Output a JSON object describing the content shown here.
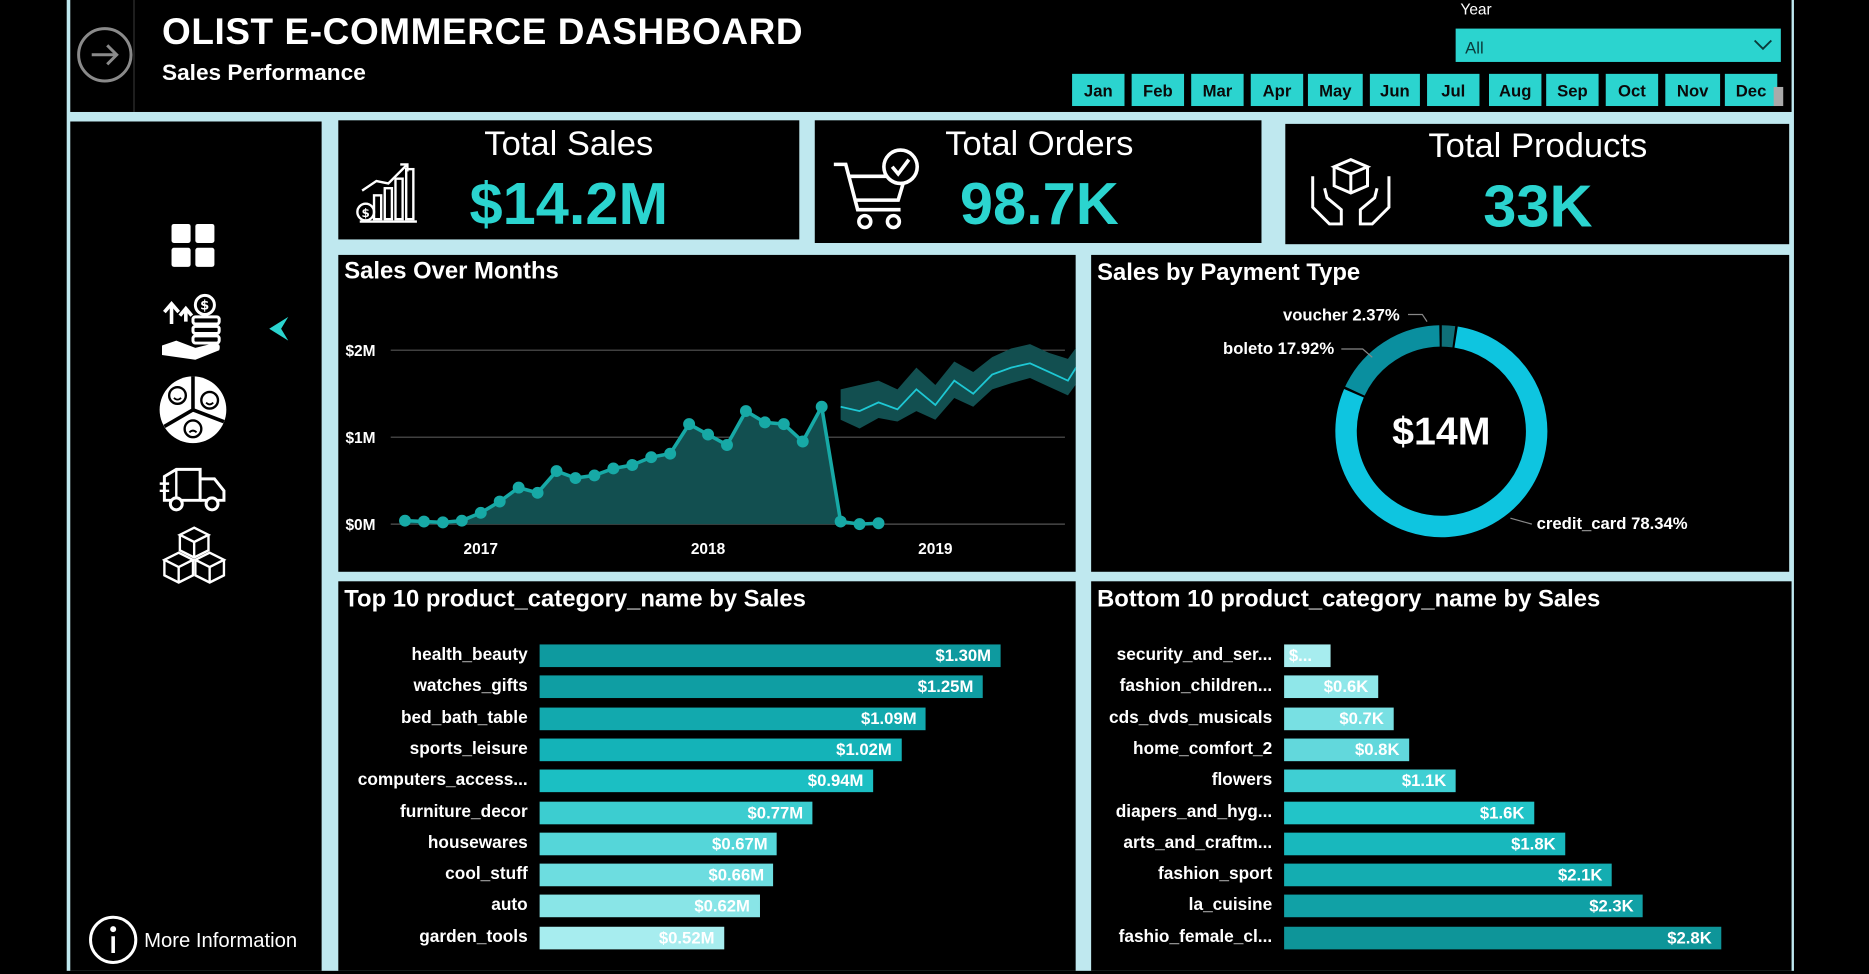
{
  "header": {
    "title": "OLIST E-COMMERCE DASHBOARD",
    "subtitle": "Sales Performance",
    "year_label": "Year",
    "year_value": "All",
    "months": [
      "Jan",
      "Feb",
      "Mar",
      "Apr",
      "May",
      "Jun",
      "Jul",
      "Aug",
      "Sep",
      "Oct",
      "Nov",
      "Dec"
    ]
  },
  "sidebar": {
    "icons": [
      "dashboard-grid-icon",
      "sales-coins-icon",
      "sentiment-pie-icon",
      "delivery-truck-icon",
      "products-cubes-icon"
    ],
    "more_info": "More Information"
  },
  "kpis": {
    "total_sales": {
      "label": "Total Sales",
      "value": "$14.2M"
    },
    "total_orders": {
      "label": "Total Orders",
      "value": "98.7K"
    },
    "total_products": {
      "label": "Total Products",
      "value": "33K"
    }
  },
  "colors": {
    "accent": "#2bd4cf",
    "backdrop": "#bfe8ef",
    "area_fill": "#124f50",
    "line": "#17a9a6"
  },
  "chart_data": [
    {
      "type": "area",
      "title": "Sales Over Months",
      "y_ticks": [
        "$0M",
        "$1M",
        "$2M"
      ],
      "x_ticks": [
        "2017",
        "2018",
        "2019"
      ],
      "ylim": [
        0,
        2.0
      ],
      "x": [
        "2016-09",
        "2016-10",
        "2016-11",
        "2016-12",
        "2017-01",
        "2017-02",
        "2017-03",
        "2017-04",
        "2017-05",
        "2017-06",
        "2017-07",
        "2017-08",
        "2017-09",
        "2017-10",
        "2017-11",
        "2017-12",
        "2018-01",
        "2018-02",
        "2018-03",
        "2018-04",
        "2018-05",
        "2018-06",
        "2018-07",
        "2018-08",
        "2018-09",
        "2018-10"
      ],
      "series": [
        {
          "values": [
            0.04,
            0.03,
            0.02,
            0.04,
            0.13,
            0.26,
            0.42,
            0.36,
            0.61,
            0.53,
            0.56,
            0.64,
            0.68,
            0.77,
            0.81,
            1.15,
            1.03,
            0.91,
            1.3,
            1.17,
            1.15,
            0.95,
            1.35,
            0.03,
            0.0,
            0.01
          ]
        }
      ],
      "forecast": {
        "x": [
          "2018-08",
          "2018-09",
          "2018-10",
          "2018-11",
          "2018-12",
          "2019-01",
          "2019-02",
          "2019-03",
          "2019-04",
          "2019-05",
          "2019-06",
          "2019-07",
          "2019-08",
          "2019-09"
        ],
        "values": [
          1.35,
          1.3,
          1.4,
          1.32,
          1.55,
          1.37,
          1.65,
          1.5,
          1.72,
          1.8,
          1.85,
          1.75,
          1.65,
          2.0
        ],
        "lower": [
          1.2,
          1.1,
          1.22,
          1.18,
          1.3,
          1.2,
          1.45,
          1.35,
          1.55,
          1.62,
          1.68,
          1.58,
          1.48,
          1.78
        ],
        "upper": [
          1.55,
          1.6,
          1.65,
          1.55,
          1.8,
          1.6,
          1.87,
          1.75,
          1.92,
          2.02,
          2.07,
          1.97,
          1.9,
          2.2
        ]
      }
    },
    {
      "type": "pie",
      "title": "Sales by Payment Type",
      "center_label": "$14M",
      "categories": [
        "credit_card",
        "boleto",
        "voucher"
      ],
      "values": [
        78.34,
        17.92,
        2.37
      ],
      "labels": [
        "credit_card 78.34%",
        "boleto 17.92%",
        "voucher 2.37%"
      ]
    },
    {
      "type": "bar",
      "title": "Top 10 product_category_name by Sales",
      "categories": [
        "health_beauty",
        "watches_gifts",
        "bed_bath_table",
        "sports_leisure",
        "computers_access...",
        "furniture_decor",
        "housewares",
        "cool_stuff",
        "auto",
        "garden_tools"
      ],
      "values": [
        1.3,
        1.25,
        1.09,
        1.02,
        0.94,
        0.77,
        0.67,
        0.66,
        0.62,
        0.52
      ],
      "value_labels": [
        "$1.30M",
        "$1.25M",
        "$1.09M",
        "$1.02M",
        "$0.94M",
        "$0.77M",
        "$0.67M",
        "$0.66M",
        "$0.62M",
        "$0.52M"
      ],
      "xlim": [
        0,
        1.3
      ]
    },
    {
      "type": "bar",
      "title": "Bottom 10 product_category_name by Sales",
      "categories": [
        "security_and_ser...",
        "fashion_children...",
        "cds_dvds_musicals",
        "home_comfort_2",
        "flowers",
        "diapers_and_hyg...",
        "arts_and_craftm...",
        "fashion_sport",
        "la_cuisine",
        "fashio_female_cl..."
      ],
      "values": [
        0.3,
        0.6,
        0.7,
        0.8,
        1.1,
        1.6,
        1.8,
        2.1,
        2.3,
        2.8
      ],
      "value_labels": [
        "$...",
        "$0.6K",
        "$0.7K",
        "$0.8K",
        "$1.1K",
        "$1.6K",
        "$1.8K",
        "$2.1K",
        "$2.3K",
        "$2.8K"
      ],
      "xlim": [
        0,
        2.8
      ]
    }
  ]
}
